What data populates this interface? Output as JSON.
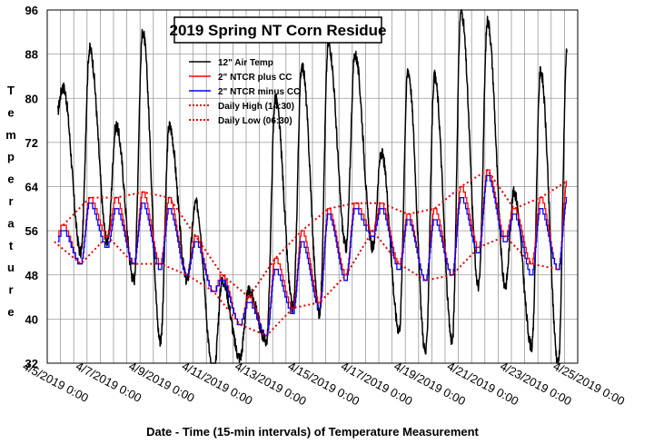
{
  "chart_data": {
    "type": "line",
    "title": "2019 Spring NT Corn Residue",
    "xlabel": "Date - Time (15-min intervals) of Temperature Measurement",
    "ylabel": "Temperature",
    "ylim": [
      32,
      96
    ],
    "yticks": [
      32,
      40,
      48,
      56,
      64,
      72,
      80,
      88,
      96
    ],
    "xlim_days": [
      0,
      20
    ],
    "xtick_labels": [
      "4/5/2019 0:00",
      "4/7/2019 0:00",
      "4/9/2019 0:00",
      "4/11/2019 0:00",
      "4/13/2019 0:00",
      "4/15/2019 0:00",
      "4/17/2019 0:00",
      "4/19/2019 0:00",
      "4/21/2019 0:00",
      "4/23/2019 0:00",
      "4/25/2019 0:00"
    ],
    "xtick_days": [
      0,
      2,
      4,
      6,
      8,
      10,
      12,
      14,
      16,
      18,
      20
    ],
    "legend": [
      "12\" Air Temp",
      "2\" NTCR plus CC",
      "2\" NTCR minus CC",
      "Daily High (14:30)",
      "Daily Low  (06:30)"
    ],
    "colors": {
      "air": "#000000",
      "plus": "#ff0000",
      "minus": "#0000ff",
      "dotted": "#e00000",
      "grid": "#9a9a9a"
    },
    "start_day": 0.4,
    "end_day": 19.6,
    "daily": [
      {
        "day": 0,
        "air_low": 75,
        "air_high": 82,
        "plus_low": 54,
        "plus_high": 57,
        "minus_low": 53,
        "minus_high": 56
      },
      {
        "day": 1,
        "air_low": 52,
        "air_high": 89,
        "plus_low": 50,
        "plus_high": 62,
        "minus_low": 50,
        "minus_high": 61
      },
      {
        "day": 2,
        "air_low": 54,
        "air_high": 75,
        "plus_low": 55,
        "plus_high": 62,
        "minus_low": 53,
        "minus_high": 60
      },
      {
        "day": 3,
        "air_low": 47,
        "air_high": 92,
        "plus_low": 50,
        "plus_high": 63,
        "minus_low": 50,
        "minus_high": 61
      },
      {
        "day": 4,
        "air_low": 36,
        "air_high": 75,
        "plus_low": 50,
        "plus_high": 62,
        "minus_low": 49,
        "minus_high": 60
      },
      {
        "day": 5,
        "air_low": 47,
        "air_high": 61,
        "plus_low": 48,
        "plus_high": 55,
        "minus_low": 48,
        "minus_high": 54
      },
      {
        "day": 6,
        "air_low": 30,
        "air_high": 47,
        "plus_low": 45,
        "plus_high": 48,
        "minus_low": 45,
        "minus_high": 47
      },
      {
        "day": 7,
        "air_low": 33,
        "air_high": 45,
        "plus_low": 39,
        "plus_high": 44,
        "minus_low": 39,
        "minus_high": 43
      },
      {
        "day": 8,
        "air_low": 36,
        "air_high": 80,
        "plus_low": 37,
        "plus_high": 51,
        "minus_low": 37,
        "minus_high": 49
      },
      {
        "day": 9,
        "air_low": 42,
        "air_high": 86,
        "plus_low": 42,
        "plus_high": 56,
        "minus_low": 41,
        "minus_high": 54
      },
      {
        "day": 10,
        "air_low": 41,
        "air_high": 90,
        "plus_low": 43,
        "plus_high": 60,
        "minus_low": 42,
        "minus_high": 59
      },
      {
        "day": 11,
        "air_low": 53,
        "air_high": 88,
        "plus_low": 48,
        "plus_high": 61,
        "minus_low": 47,
        "minus_high": 60
      },
      {
        "day": 12,
        "air_low": 53,
        "air_high": 70,
        "plus_low": 56,
        "plus_high": 61,
        "minus_low": 55,
        "minus_high": 60
      },
      {
        "day": 13,
        "air_low": 38,
        "air_high": 85,
        "plus_low": 50,
        "plus_high": 59,
        "minus_low": 49,
        "minus_high": 58
      },
      {
        "day": 14,
        "air_low": 34,
        "air_high": 84,
        "plus_low": 47,
        "plus_high": 60,
        "minus_low": 47,
        "minus_high": 58
      },
      {
        "day": 15,
        "air_low": 36,
        "air_high": 96,
        "plus_low": 48,
        "plus_high": 64,
        "minus_low": 48,
        "minus_high": 62
      },
      {
        "day": 16,
        "air_low": 46,
        "air_high": 94,
        "plus_low": 53,
        "plus_high": 67,
        "minus_low": 52,
        "minus_high": 66
      },
      {
        "day": 17,
        "air_low": 46,
        "air_high": 63,
        "plus_low": 55,
        "plus_high": 60,
        "minus_low": 54,
        "minus_high": 59
      },
      {
        "day": 18,
        "air_low": 35,
        "air_high": 85,
        "plus_low": 50,
        "plus_high": 62,
        "minus_low": 48,
        "minus_high": 60
      },
      {
        "day": 19,
        "air_low": 32,
        "air_high": 89,
        "plus_low": 49,
        "plus_high": 65,
        "minus_low": 49,
        "minus_high": 62
      }
    ]
  }
}
